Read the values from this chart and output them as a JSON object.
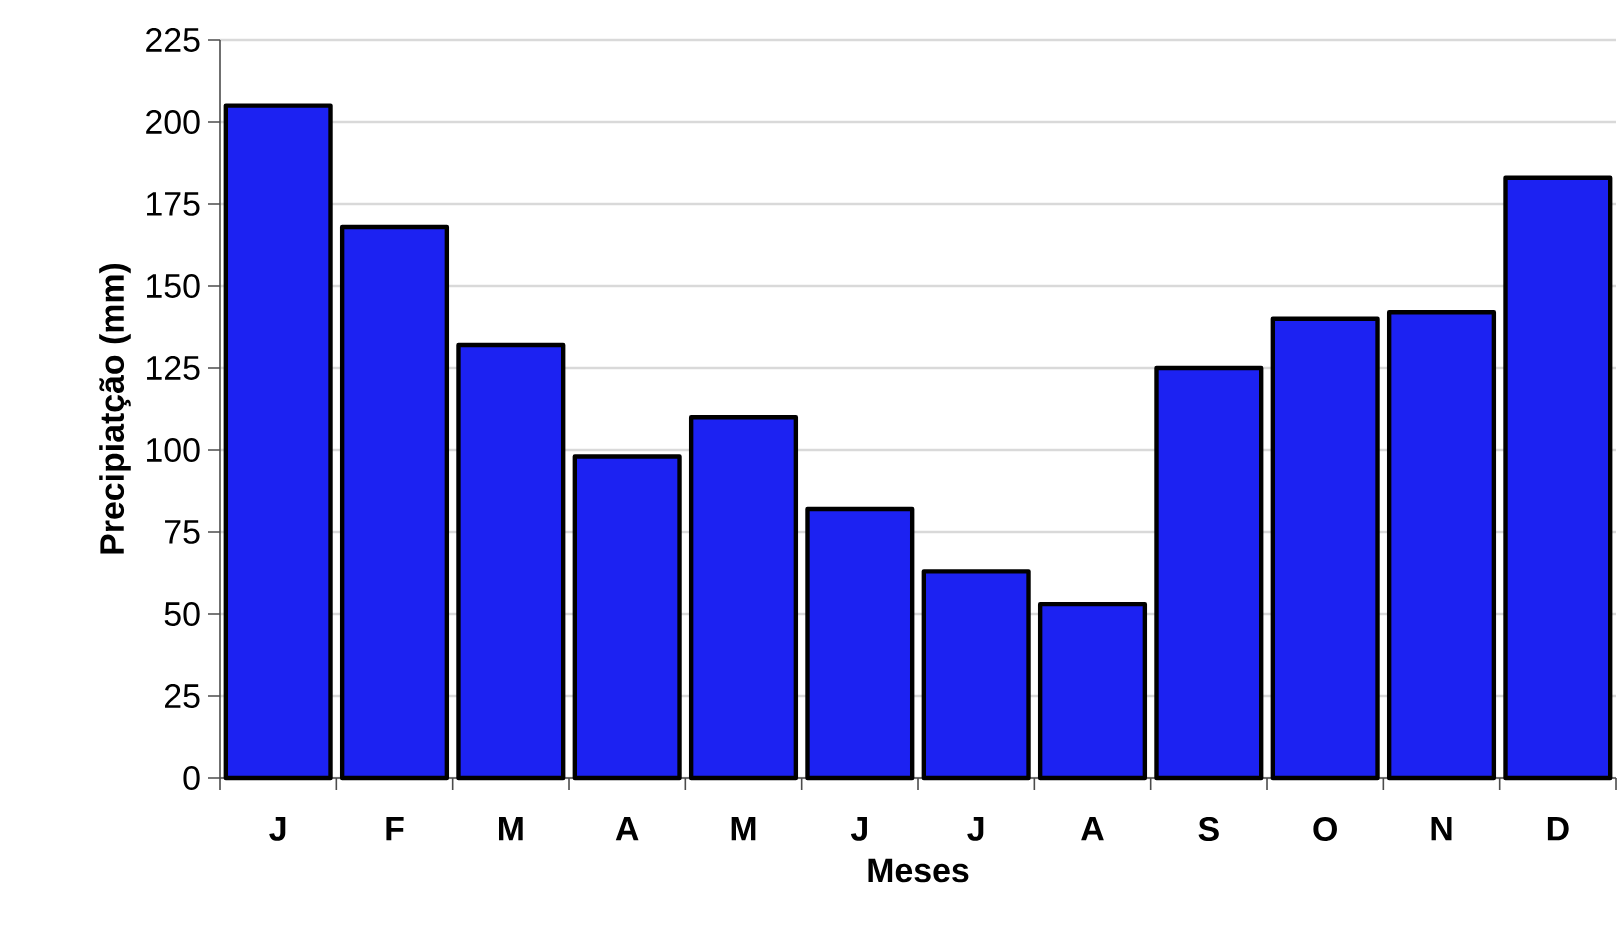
{
  "chart_data": {
    "type": "bar",
    "xlabel": "Meses",
    "ylabel": "Precipiatção  (mm)",
    "categories": [
      "J",
      "F",
      "M",
      "A",
      "M",
      "J",
      "J",
      "A",
      "S",
      "O",
      "N",
      "D"
    ],
    "values": [
      205,
      168,
      132,
      98,
      110,
      82,
      63,
      53,
      125,
      140,
      142,
      183
    ],
    "color": "#1c22f2",
    "ylim": [
      0,
      225
    ],
    "yticks": [
      0,
      25,
      50,
      75,
      100,
      125,
      150,
      175,
      200,
      225
    ],
    "grid": "y"
  }
}
